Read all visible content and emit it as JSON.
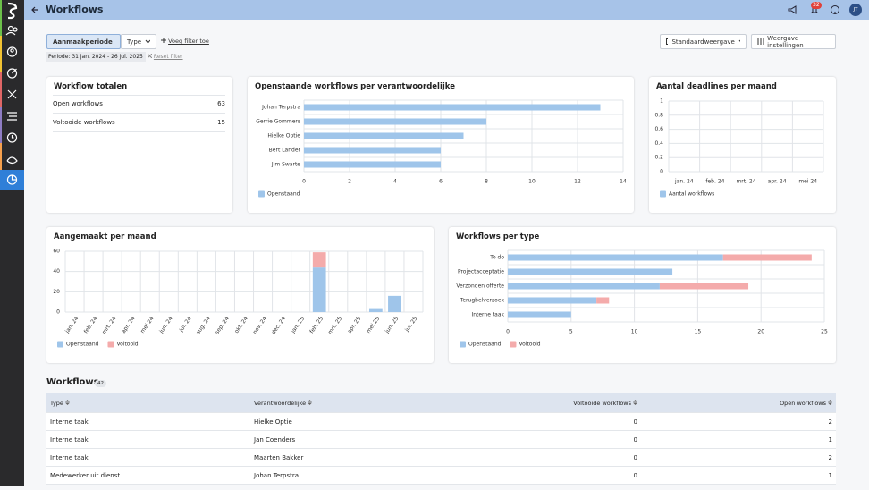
{
  "header": {
    "title": "Workflows",
    "notification_count": 32,
    "avatar": "JT"
  },
  "filters": {
    "period_button": "Aanmaakperiode",
    "type_button": "Type",
    "add_filter": "Voeg filter toe",
    "period": "Periode: 31 jan. 2024 - 26 jul. 2025",
    "reset": "Reset filter",
    "view": "Standaardweergave",
    "view_settings": "Weergave instellingen"
  },
  "totals": {
    "title": "Workflow totalen",
    "rows": [
      {
        "label": "Open workflows",
        "value": 63
      },
      {
        "label": "Voltooide workflows",
        "value": 15
      }
    ]
  },
  "chart_data": [
    {
      "type": "hbar",
      "title": "Openstaande workflows per verantwoordelijke",
      "categories": [
        "Johan Terpstra",
        "Gerrie Gommers",
        "Hielke Optie",
        "Bert Lander",
        "Jim Swarte"
      ],
      "series": [
        {
          "name": "Openstaand",
          "color": "#9fc5ea",
          "values": [
            13,
            8,
            7,
            6,
            6
          ]
        }
      ],
      "xlim": [
        0,
        14
      ],
      "xticks": [
        0,
        2,
        4,
        6,
        8,
        10,
        12,
        14
      ],
      "grid": true
    },
    {
      "type": "bar",
      "title": "Aantal deadlines per maand",
      "categories": [
        "jan. 24",
        "feb. 24",
        "mrt. 24",
        "apr. 24",
        "mei 24"
      ],
      "series": [
        {
          "name": "Aantal workflows",
          "color": "#9fc5ea",
          "values": [
            0,
            0,
            0,
            0,
            0
          ]
        }
      ],
      "ylim": [
        0,
        1
      ],
      "yticks": [
        0,
        0.2,
        0.4,
        0.6,
        0.8,
        1
      ],
      "grid": true
    },
    {
      "type": "bar",
      "title": "Aangemaakt per maand",
      "categories": [
        "jan. 24",
        "feb. 24",
        "mrt. 24",
        "apr. 24",
        "mei 24",
        "jun. 24",
        "jul. 24",
        "aug. 24",
        "sep. 24",
        "okt. 24",
        "nov. 24",
        "dec. 24",
        "jan. 25",
        "feb. 25",
        "mrt. 25",
        "apr. 25",
        "mei 25",
        "jun. 25",
        "jul. 25"
      ],
      "series": [
        {
          "name": "Openstaand",
          "color": "#9fc5ea",
          "values": [
            0,
            0,
            0,
            0,
            0,
            0,
            0,
            0,
            0,
            0,
            0,
            0,
            0,
            44,
            0,
            0,
            3,
            16,
            0
          ]
        },
        {
          "name": "Voltooid",
          "color": "#f4abab",
          "values": [
            0,
            0,
            0,
            0,
            0,
            0,
            0,
            0,
            0,
            0,
            0,
            0,
            0,
            15,
            0,
            0,
            0,
            0,
            0
          ]
        }
      ],
      "ylim": [
        0,
        60
      ],
      "yticks": [
        0,
        20,
        40,
        60
      ],
      "grid": true
    },
    {
      "type": "hbar",
      "title": "Workflows per type",
      "categories": [
        "To do",
        "Projectacceptatie",
        "Verzonden offerte",
        "Terugbelverzoek",
        "Interne taak"
      ],
      "series": [
        {
          "name": "Openstaand",
          "color": "#9fc5ea",
          "values": [
            17,
            13,
            12,
            7,
            5
          ]
        },
        {
          "name": "Voltooid",
          "color": "#f4abab",
          "values": [
            7,
            0,
            7,
            1,
            0
          ]
        }
      ],
      "xlim": [
        0,
        25
      ],
      "xticks": [
        0,
        5,
        10,
        15,
        20,
        25
      ],
      "grid": true
    }
  ],
  "table": {
    "title": "Workflows",
    "count": 42,
    "columns": [
      "Type",
      "Verantwoordelijke",
      "Voltooide workflows",
      "Open workflows"
    ],
    "rows": [
      [
        "Interne taak",
        "Hielke Optie",
        0,
        2
      ],
      [
        "Interne taak",
        "Jan Coenders",
        0,
        1
      ],
      [
        "Interne taak",
        "Maarten Bakker",
        0,
        2
      ],
      [
        "Medewerker uit dienst",
        "Johan Terpstra",
        0,
        1
      ]
    ]
  }
}
